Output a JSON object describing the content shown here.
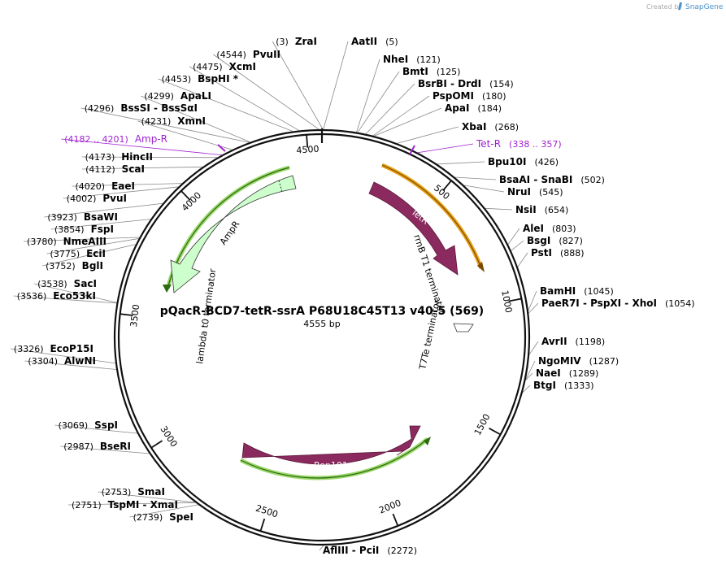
{
  "header": {
    "credit": "Created by",
    "brand": "SnapGene"
  },
  "plasmid": {
    "name": "pQacR-BCD7-tetR-ssrA P68U18C45T13 v40-5 (569)",
    "length_label": "4555 bp",
    "length": 4555
  },
  "colors": {
    "backbone": "#111111",
    "tetR": "#8b2a5e",
    "rep101": "#8b2a5e",
    "ampR": "#ccffcc",
    "tetR_primer": "#e8a21a",
    "green_primer": "#5bb41e",
    "purple_site": "#a020d0"
  },
  "ticks": [
    {
      "label": "500",
      "bp": 500
    },
    {
      "label": "1000",
      "bp": 1000
    },
    {
      "label": "1500",
      "bp": 1500
    },
    {
      "label": "2000",
      "bp": 2000
    },
    {
      "label": "2500",
      "bp": 2500
    },
    {
      "label": "3000",
      "bp": 3000
    },
    {
      "label": "3500",
      "bp": 3500
    },
    {
      "label": "4000",
      "bp": 4000
    },
    {
      "label": "4500",
      "bp": 4500
    }
  ],
  "features": {
    "tetR": "TetR",
    "rep101": "Rep101",
    "ampR": "AmpR",
    "rrnb": "rrnB T1 terminator",
    "t7te": "T7Te terminator",
    "lambda": "lambda t0 terminator"
  },
  "sites_right": [
    {
      "name": "ZraI",
      "pos": "(3)"
    },
    {
      "name": "AatII",
      "pos": "(5)"
    },
    {
      "name": "NheI",
      "pos": "(121)"
    },
    {
      "name": "BmtI",
      "pos": "(125)"
    },
    {
      "name": "BsrBI  -  DrdI",
      "pos": "(154)"
    },
    {
      "name": "PspOMI",
      "pos": "(180)"
    },
    {
      "name": "ApaI",
      "pos": "(184)"
    },
    {
      "name": "XbaI",
      "pos": "(268)"
    },
    {
      "name": "Tet-R",
      "pos": "(338 .. 357)"
    },
    {
      "name": "Bpu10I",
      "pos": "(426)"
    },
    {
      "name": "BsaAI  -  SnaBI",
      "pos": "(502)"
    },
    {
      "name": "NruI",
      "pos": "(545)"
    },
    {
      "name": "NsiI",
      "pos": "(654)"
    },
    {
      "name": "AleI",
      "pos": "(803)"
    },
    {
      "name": "BsgI",
      "pos": "(827)"
    },
    {
      "name": "PstI",
      "pos": "(888)"
    },
    {
      "name": "BamHI",
      "pos": "(1045)"
    },
    {
      "name": "PaeR7I  -  PspXI  -  XhoI",
      "pos": "(1054)"
    },
    {
      "name": "AvrII",
      "pos": "(1198)"
    },
    {
      "name": "NgoMIV",
      "pos": "(1287)"
    },
    {
      "name": "NaeI",
      "pos": "(1289)"
    },
    {
      "name": "BtgI",
      "pos": "(1333)"
    }
  ],
  "sites_bottom": [
    {
      "name": "AflIII  -  PciI",
      "pos": "(2272)"
    }
  ],
  "sites_left": [
    {
      "name": "PvuII",
      "pos": "(4544)"
    },
    {
      "name": "XcmI",
      "pos": "(4475)"
    },
    {
      "name": "BspHI *",
      "pos": "(4453)"
    },
    {
      "name": "ApaLI",
      "pos": "(4299)"
    },
    {
      "name": "BssSI  -  BssSαI",
      "pos": "(4296)"
    },
    {
      "name": "XmnI",
      "pos": "(4231)"
    },
    {
      "name": "Amp-R",
      "pos": "(4182 .. 4201)"
    },
    {
      "name": "HincII",
      "pos": "(4173)"
    },
    {
      "name": "ScaI",
      "pos": "(4112)"
    },
    {
      "name": "EaeI",
      "pos": "(4020)"
    },
    {
      "name": "PvuI",
      "pos": "(4002)"
    },
    {
      "name": "BsaWI",
      "pos": "(3923)"
    },
    {
      "name": "FspI",
      "pos": "(3854)"
    },
    {
      "name": "NmeAIII",
      "pos": "(3780)"
    },
    {
      "name": "EciI",
      "pos": "(3775)"
    },
    {
      "name": "BglI",
      "pos": "(3752)"
    },
    {
      "name": "SacI",
      "pos": "(3538)"
    },
    {
      "name": "Eco53kI",
      "pos": "(3536)"
    },
    {
      "name": "EcoP15I",
      "pos": "(3326)"
    },
    {
      "name": "AlwNI",
      "pos": "(3304)"
    },
    {
      "name": "SspI",
      "pos": "(3069)"
    },
    {
      "name": "BseRI",
      "pos": "(2987)"
    },
    {
      "name": "SmaI",
      "pos": "(2753)"
    },
    {
      "name": "TspMI  -  XmaI",
      "pos": "(2751)"
    },
    {
      "name": "SpeI",
      "pos": "(2739)"
    }
  ]
}
